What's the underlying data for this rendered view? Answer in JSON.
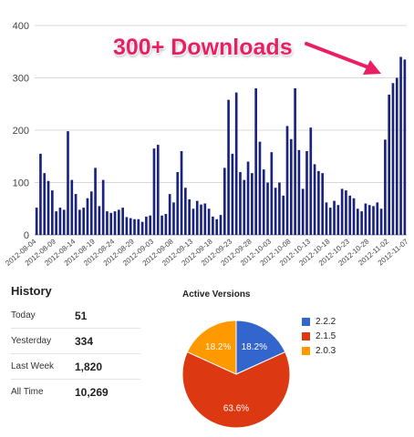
{
  "callout": {
    "text": "300+ Downloads"
  },
  "colors": {
    "bars": "#1a237e",
    "callout": "#ea1f63",
    "v222": "#3366cc",
    "v215": "#dc3912",
    "v203": "#ff9900"
  },
  "chart_data": [
    {
      "type": "bar",
      "title": "",
      "xlabel": "",
      "ylabel": "",
      "ylim": [
        0,
        400
      ],
      "yticks": [
        0,
        100,
        200,
        300,
        400
      ],
      "grid": true,
      "legend": "none",
      "xtick_labels": [
        "2012-08-04",
        "2012-08-09",
        "2012-08-14",
        "2012-08-19",
        "2012-08-24",
        "2012-08-29",
        "2012-09-03",
        "2012-09-08",
        "2012-09-13",
        "2012-09-18",
        "2012-09-23",
        "2012-09-28",
        "2012-10-03",
        "2012-10-08",
        "2012-10-13",
        "2012-10-18",
        "2012-10-23",
        "2012-10-28",
        "2012-11-02",
        "2012-11-07"
      ],
      "values": [
        52,
        155,
        118,
        103,
        85,
        45,
        52,
        48,
        198,
        105,
        78,
        48,
        52,
        70,
        83,
        128,
        55,
        105,
        45,
        42,
        45,
        48,
        52,
        34,
        32,
        30,
        30,
        25,
        35,
        37,
        165,
        172,
        37,
        40,
        78,
        62,
        120,
        160,
        90,
        68,
        50,
        65,
        58,
        60,
        50,
        35,
        30,
        38,
        128,
        258,
        155,
        272,
        120,
        105,
        140,
        118,
        280,
        178,
        125,
        100,
        158,
        90,
        100,
        75,
        208,
        183,
        280,
        162,
        88,
        160,
        205,
        135,
        122,
        118,
        62,
        52,
        65,
        57,
        88,
        85,
        75,
        70,
        50,
        45,
        60,
        57,
        55,
        62,
        50,
        182,
        268,
        290,
        300,
        340,
        335
      ]
    },
    {
      "type": "pie",
      "title": "Active Versions",
      "labels": [
        "2.2.2",
        "2.1.5",
        "2.0.3"
      ],
      "values": [
        18.2,
        63.6,
        18.2
      ],
      "slice_labels": [
        "18.2%",
        "63.6%",
        "18.2%"
      ],
      "legend": "right"
    }
  ],
  "history": {
    "title": "History",
    "rows": [
      {
        "label": "Today",
        "value": "51"
      },
      {
        "label": "Yesterday",
        "value": "334"
      },
      {
        "label": "Last Week",
        "value": "1,820"
      },
      {
        "label": "All Time",
        "value": "10,269"
      }
    ]
  }
}
